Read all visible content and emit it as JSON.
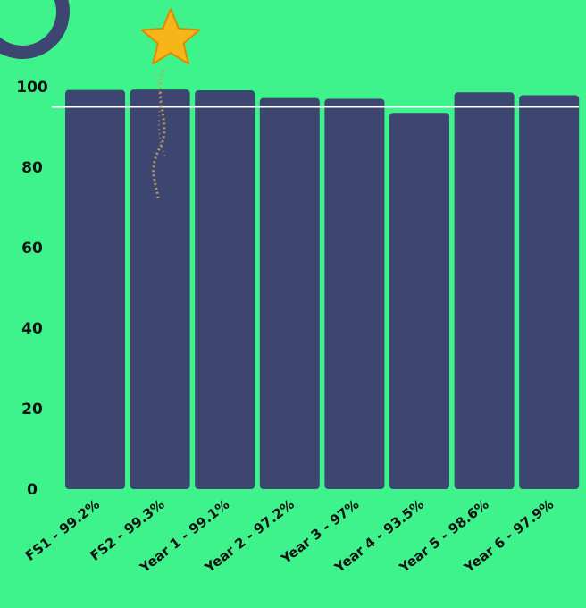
{
  "chart_data": {
    "type": "bar",
    "categories": [
      "FS1 - 99.2%",
      "FS2 - 99.3%",
      "Year 1 - 99.1%",
      "Year 2 - 97.2%",
      "Year 3 - 97%",
      "Year 4 - 93.5%",
      "Year 5 - 98.6%",
      "Year 6 - 97.9%"
    ],
    "values": [
      99.2,
      99.3,
      99.1,
      97.2,
      97,
      93.5,
      98.6,
      97.9
    ],
    "yticks": [
      "0",
      "20",
      "40",
      "60",
      "80",
      "100"
    ],
    "ylim": [
      0,
      100
    ],
    "target_line": 95,
    "highlight_index": 1,
    "grid": false,
    "legend": "none"
  },
  "colors": {
    "background": "#3ef38c",
    "bar": "#3d4670",
    "target_line": "#ffffff",
    "star": "#f7b51c",
    "sparkle": "#c9a15a"
  },
  "icons": {
    "highlight": "star-icon",
    "corner": "decorative-blob"
  }
}
